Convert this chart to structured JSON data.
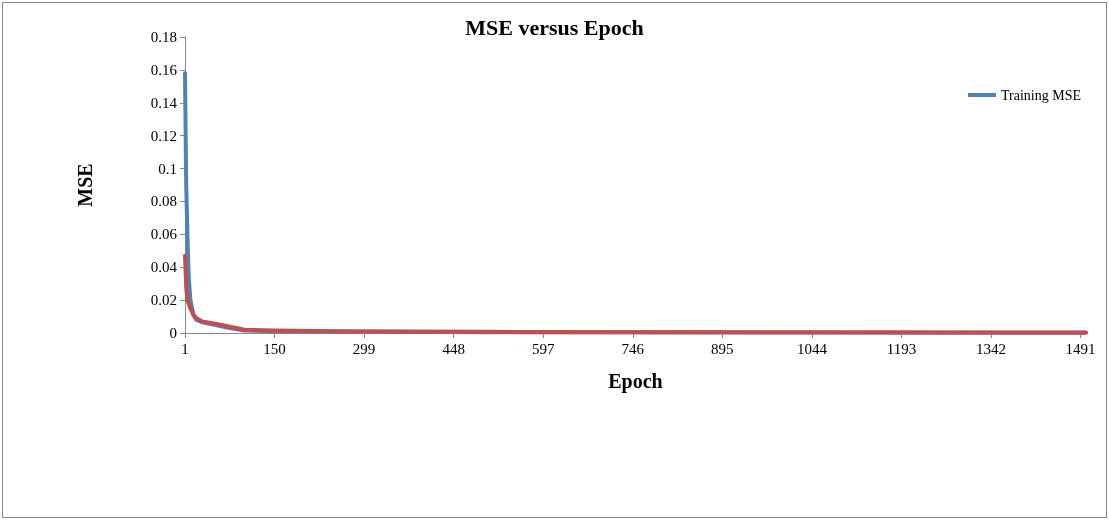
{
  "chart_data": {
    "type": "line",
    "title": "MSE versus Epoch",
    "xlabel": "Epoch",
    "ylabel": "MSE",
    "xlim": [
      1,
      1500
    ],
    "xticks": [
      1,
      150,
      299,
      448,
      597,
      746,
      895,
      1044,
      1193,
      1342,
      1491
    ],
    "ylim": [
      0,
      0.18
    ],
    "yticks": [
      0,
      0.02,
      0.04,
      0.06,
      0.08,
      0.1,
      0.12,
      0.14,
      0.16,
      0.18
    ],
    "grid": false,
    "legend": "top right",
    "marker": "none",
    "line_style": "solid",
    "series": [
      {
        "name": "Training MSE",
        "color": "#4f81bd",
        "x": [
          1,
          3,
          5,
          7,
          10,
          15,
          20,
          30,
          50,
          75,
          100,
          150,
          300,
          500,
          1000,
          1500
        ],
        "values": [
          0.158,
          0.09,
          0.06,
          0.035,
          0.02,
          0.011,
          0.008,
          0.0065,
          0.005,
          0.003,
          0.0015,
          0.001,
          0.0007,
          0.0005,
          0.0003,
          0.0002
        ]
      },
      {
        "color": "#c0504d",
        "x": [
          1,
          3,
          5,
          10,
          15,
          20,
          30,
          60,
          100,
          150,
          250,
          500,
          1000,
          1500
        ],
        "values": [
          0.047,
          0.028,
          0.02,
          0.015,
          0.011,
          0.009,
          0.007,
          0.005,
          0.002,
          0.0015,
          0.001,
          0.0007,
          0.0004,
          0.0003
        ]
      }
    ]
  }
}
